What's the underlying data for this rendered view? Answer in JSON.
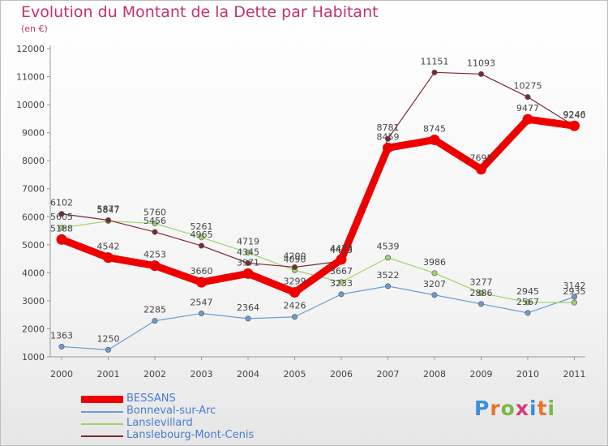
{
  "title": "Evolution du Montant de la Dette par Habitant",
  "subtitle": "(en €)",
  "brand": {
    "text": "Proxiti",
    "letters": [
      "P",
      "r",
      "o",
      "x",
      "i",
      "t",
      "i"
    ],
    "letter_colors": [
      "#3b8fd8",
      "#e8742a",
      "#7ab648",
      "#d63a7a",
      "#3b8fd8",
      "#e8742a",
      "#7ab648"
    ]
  },
  "chart_data": {
    "type": "line",
    "categories": [
      "2000",
      "2001",
      "2002",
      "2003",
      "2004",
      "2005",
      "2006",
      "2007",
      "2008",
      "2009",
      "2010",
      "2011"
    ],
    "ylim": [
      1000,
      12000
    ],
    "yticks": [
      1000,
      2000,
      3000,
      4000,
      5000,
      6000,
      7000,
      8000,
      9000,
      10000,
      11000,
      12000
    ],
    "grid": false,
    "legend_position": "bottom-left",
    "series": [
      {
        "name": "BESSANS",
        "color": "#ee0000",
        "emphasis": true,
        "values": [
          5188,
          4542,
          4253,
          3660,
          3971,
          3299,
          4473,
          8459,
          8745,
          7695,
          9477,
          9246
        ]
      },
      {
        "name": "Bonneval-sur-Arc",
        "color": "#6a9cd0",
        "emphasis": false,
        "values": [
          1363,
          1250,
          2285,
          2547,
          2364,
          2426,
          3233,
          3522,
          3207,
          2886,
          2567,
          3142
        ]
      },
      {
        "name": "Lanslevillard",
        "color": "#9ed36a",
        "emphasis": false,
        "values": [
          5605,
          5847,
          5760,
          5261,
          4719,
          4090,
          3667,
          4539,
          3986,
          3277,
          2945,
          2935
        ]
      },
      {
        "name": "Lanslebourg-Mont-Cenis",
        "color": "#7a2a32",
        "emphasis": false,
        "values": [
          6102,
          5877,
          5456,
          4965,
          4345,
          4200,
          4413,
          8781,
          11151,
          11093,
          10275,
          9240
        ]
      }
    ]
  }
}
